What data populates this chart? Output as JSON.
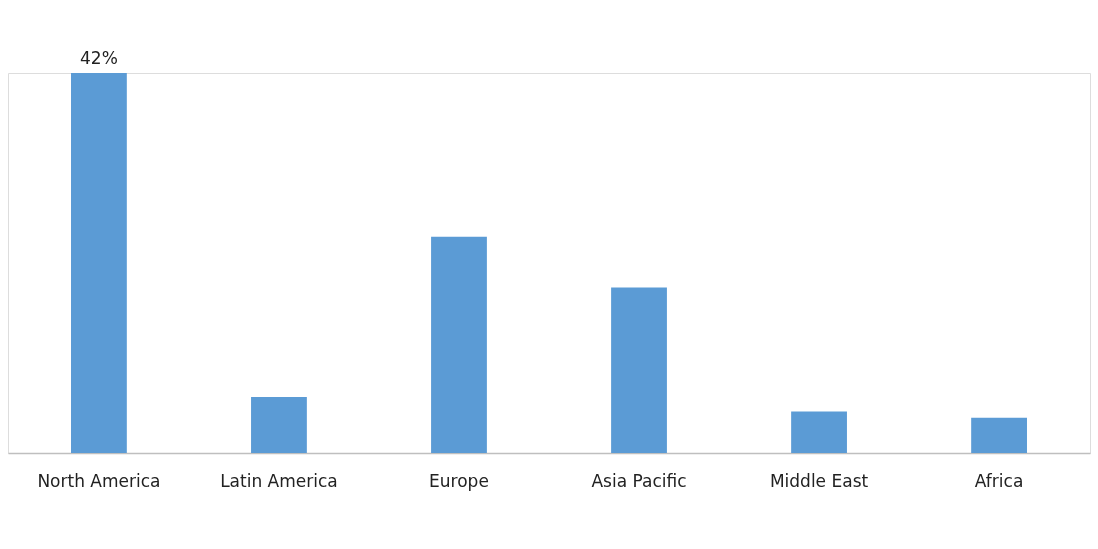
{
  "chart_data": {
    "type": "bar",
    "categories": [
      "North America",
      "Latin America",
      "Europe",
      "Asia Pacific",
      "Middle East",
      "Africa"
    ],
    "values": [
      42,
      6.2,
      23.9,
      18.3,
      4.6,
      3.9
    ],
    "value_labels": [
      "42%",
      null,
      null,
      null,
      null,
      null
    ],
    "color": "#5b9bd5"
  }
}
